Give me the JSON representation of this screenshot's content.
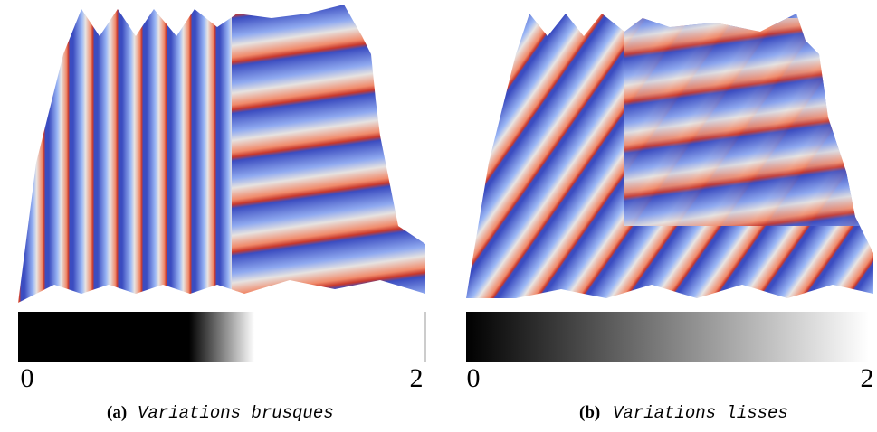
{
  "panels": [
    {
      "label": "(a)",
      "caption": "Variations brusques",
      "scale_min": 0,
      "scale_max": 2
    },
    {
      "label": "(b)",
      "caption": "Variations lisses",
      "scale_min": 0,
      "scale_max": 2
    }
  ]
}
